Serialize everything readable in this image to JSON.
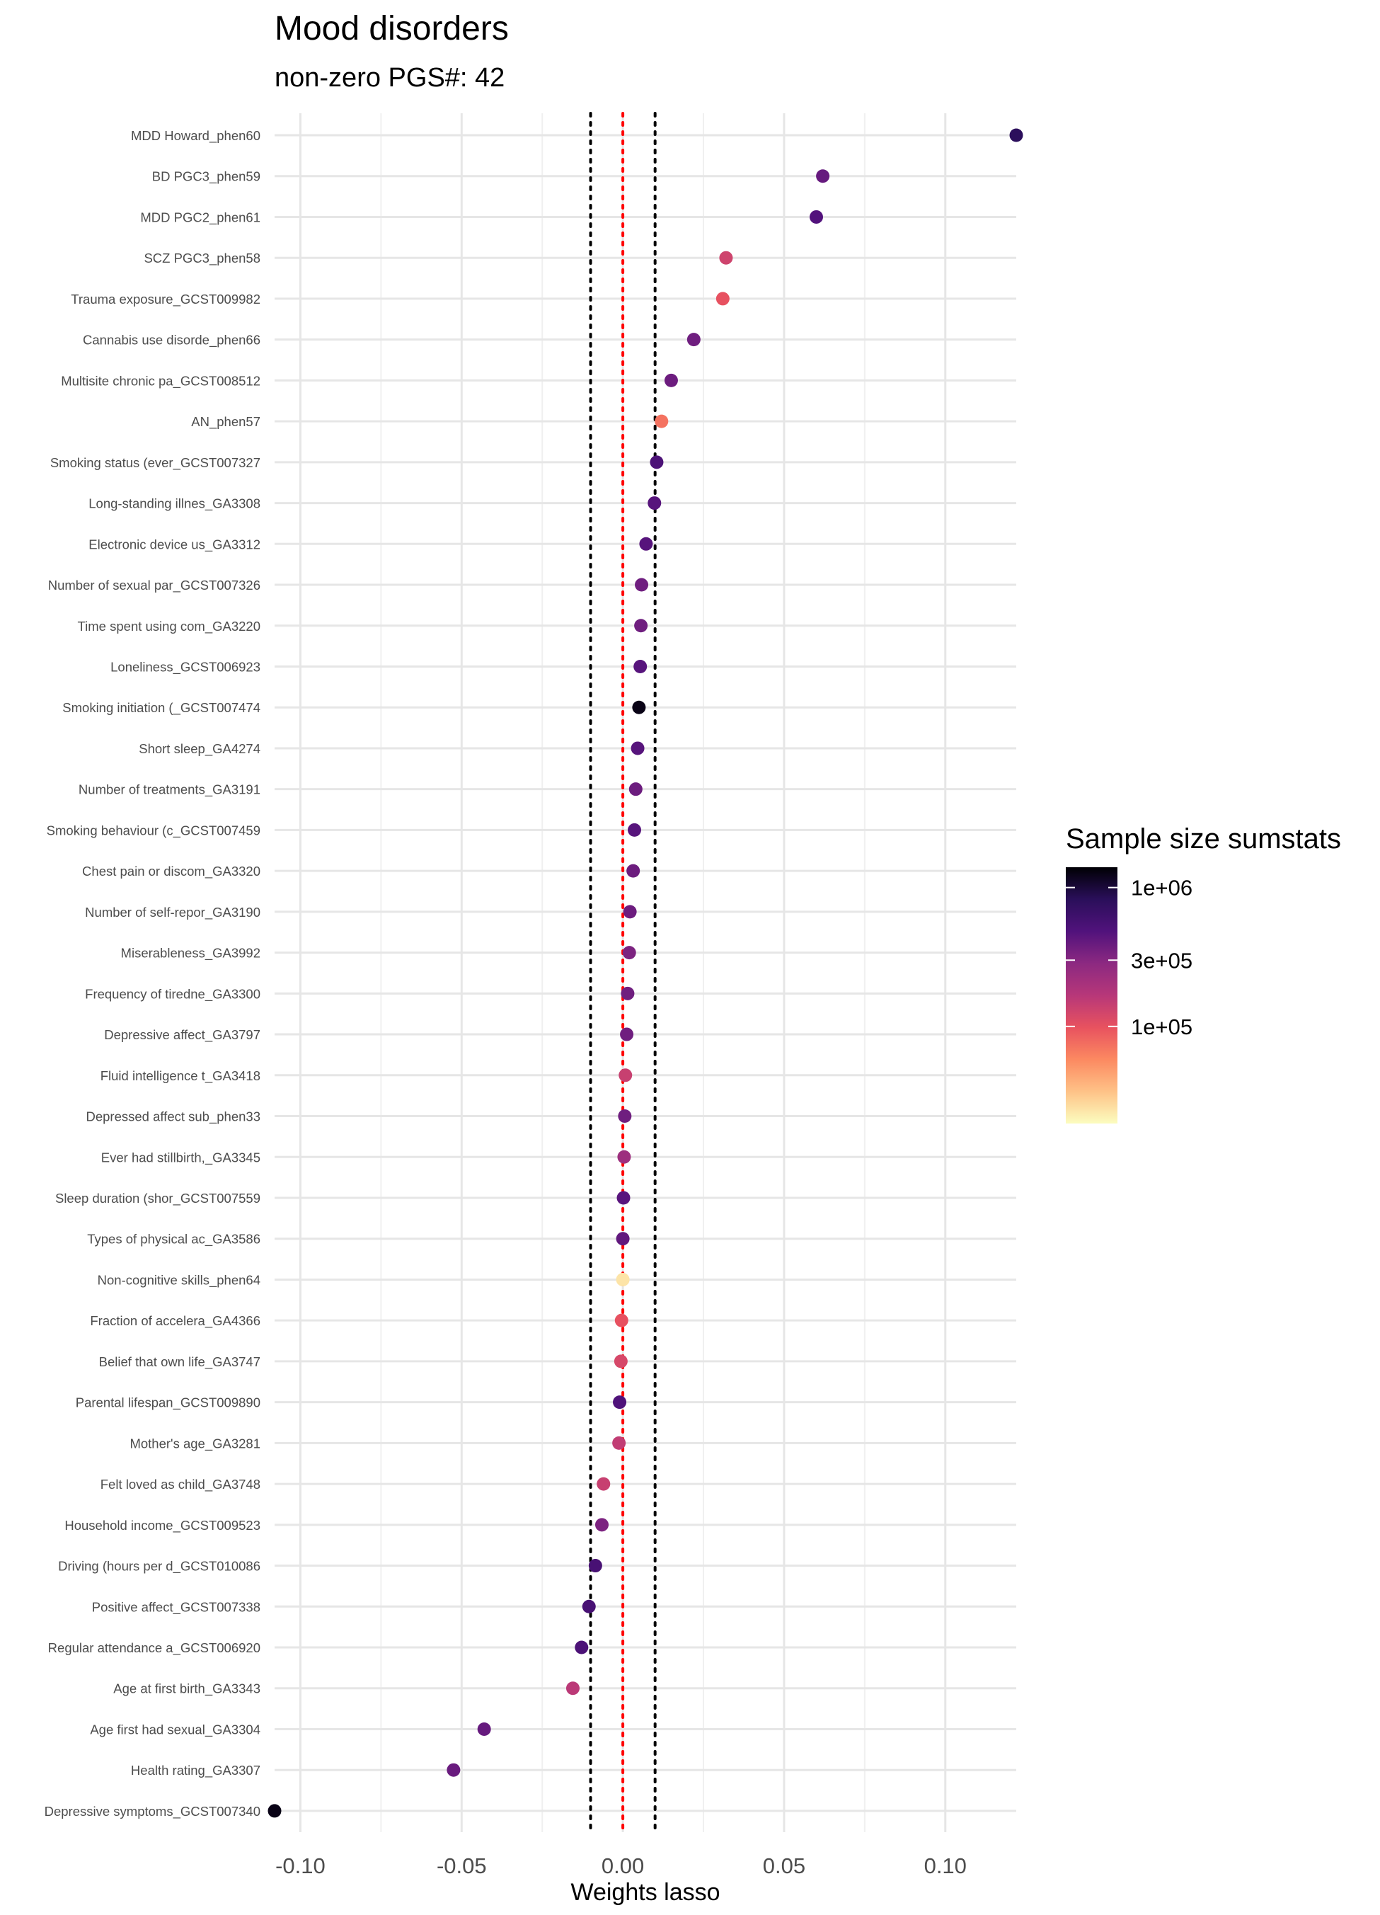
{
  "chart_data": {
    "type": "scatter",
    "title": "Mood disorders",
    "subtitle": "non-zero PGS#: 42",
    "xlabel": "Weights lasso",
    "ylabel": "",
    "xlim": [
      -0.108,
      0.122
    ],
    "x_ticks": [
      -0.1,
      -0.05,
      0.0,
      0.05,
      0.1
    ],
    "x_tick_labels": [
      "-0.10",
      "-0.05",
      "0.00",
      "0.05",
      "0.10"
    ],
    "grid": true,
    "reference_lines": [
      {
        "x": -0.01,
        "style": "dotted",
        "color": "#000000"
      },
      {
        "x": 0.0,
        "style": "dotted",
        "color": "#ff0000"
      },
      {
        "x": 0.01,
        "style": "dotted",
        "color": "#000000"
      }
    ],
    "legend": {
      "title": "Sample size sumstats",
      "placement": "right",
      "type": "colorbar",
      "scale": "log",
      "range": [
        20000,
        1400000
      ],
      "tick_values": [
        1000000,
        300000,
        100000
      ],
      "tick_labels": [
        "1e+06",
        "3e+05",
        "1e+05"
      ],
      "palette": "magma",
      "colors": [
        "#fcfdbf",
        "#fec287",
        "#fc8961",
        "#e8525f",
        "#b73779",
        "#8c2981",
        "#51127c",
        "#2a0f5a",
        "#000004"
      ]
    },
    "points": [
      {
        "label": "MDD Howard_phen60",
        "x": 0.122,
        "n": 800000
      },
      {
        "label": "BD PGC3_phen59",
        "x": 0.062,
        "n": 400000
      },
      {
        "label": "MDD PGC2_phen61",
        "x": 0.06,
        "n": 480000
      },
      {
        "label": "SCZ PGC3_phen58",
        "x": 0.032,
        "n": 130000
      },
      {
        "label": "Trauma exposure_GCST009982",
        "x": 0.031,
        "n": 100000
      },
      {
        "label": "Cannabis use disorde_phen66",
        "x": 0.022,
        "n": 370000
      },
      {
        "label": "Multisite chronic pa_GCST008512",
        "x": 0.015,
        "n": 380000
      },
      {
        "label": "AN_phen57",
        "x": 0.012,
        "n": 72000
      },
      {
        "label": "Smoking status (ever_GCST007327",
        "x": 0.0105,
        "n": 520000
      },
      {
        "label": "Long-standing illnes_GA3308",
        "x": 0.0098,
        "n": 460000
      },
      {
        "label": "Electronic device us_GA3312",
        "x": 0.0072,
        "n": 460000
      },
      {
        "label": "Number of sexual par_GCST007326",
        "x": 0.0058,
        "n": 370000
      },
      {
        "label": "Time spent using com_GA3220",
        "x": 0.0056,
        "n": 370000
      },
      {
        "label": "Loneliness_GCST006923",
        "x": 0.0054,
        "n": 460000
      },
      {
        "label": "Smoking initiation (_GCST007474",
        "x": 0.005,
        "n": 1250000
      },
      {
        "label": "Short sleep_GA4274",
        "x": 0.0046,
        "n": 460000
      },
      {
        "label": "Number of treatments_GA3191",
        "x": 0.004,
        "n": 380000
      },
      {
        "label": "Smoking behaviour (c_GCST007459",
        "x": 0.0036,
        "n": 460000
      },
      {
        "label": "Chest pain or discom_GA3320",
        "x": 0.0032,
        "n": 380000
      },
      {
        "label": "Number of self-repor_GA3190",
        "x": 0.0022,
        "n": 380000
      },
      {
        "label": "Miserableness_GA3992",
        "x": 0.002,
        "n": 330000
      },
      {
        "label": "Frequency of tiredne_GA3300",
        "x": 0.0015,
        "n": 370000
      },
      {
        "label": "Depressive affect_GA3797",
        "x": 0.0012,
        "n": 370000
      },
      {
        "label": "Fluid intelligence t_GA3418",
        "x": 0.0008,
        "n": 140000
      },
      {
        "label": "Depressed affect sub_phen33",
        "x": 0.0006,
        "n": 370000
      },
      {
        "label": "Ever had stillbirth,_GA3345",
        "x": 0.0004,
        "n": 230000
      },
      {
        "label": "Sleep duration (shor_GCST007559",
        "x": 0.0002,
        "n": 450000
      },
      {
        "label": "Types of physical ac_GA3586",
        "x": 0.0,
        "n": 420000
      },
      {
        "label": "Non-cognitive skills_phen64",
        "x": 0.0,
        "n": 25000
      },
      {
        "label": "Fraction of accelera_GA4366",
        "x": -0.0004,
        "n": 100000
      },
      {
        "label": "Belief that own life_GA3747",
        "x": -0.0006,
        "n": 120000
      },
      {
        "label": "Parental lifespan_GCST009890",
        "x": -0.001,
        "n": 500000
      },
      {
        "label": "Mother's age_GA3281",
        "x": -0.0012,
        "n": 150000
      },
      {
        "label": "Felt loved as child_GA3748",
        "x": -0.006,
        "n": 140000
      },
      {
        "label": "Household income_GCST009523",
        "x": -0.0065,
        "n": 330000
      },
      {
        "label": "Driving (hours per d_GCST010086",
        "x": -0.0085,
        "n": 550000
      },
      {
        "label": "Positive affect_GCST007338",
        "x": -0.0105,
        "n": 550000
      },
      {
        "label": "Regular attendance a_GCST006920",
        "x": -0.0128,
        "n": 520000
      },
      {
        "label": "Age at first birth_GA3343",
        "x": -0.0155,
        "n": 160000
      },
      {
        "label": "Age first had sexual_GA3304",
        "x": -0.043,
        "n": 400000
      },
      {
        "label": "Health rating_GA3307",
        "x": -0.0525,
        "n": 390000
      },
      {
        "label": "Depressive symptoms_GCST007340",
        "x": -0.108,
        "n": 1250000
      }
    ]
  }
}
